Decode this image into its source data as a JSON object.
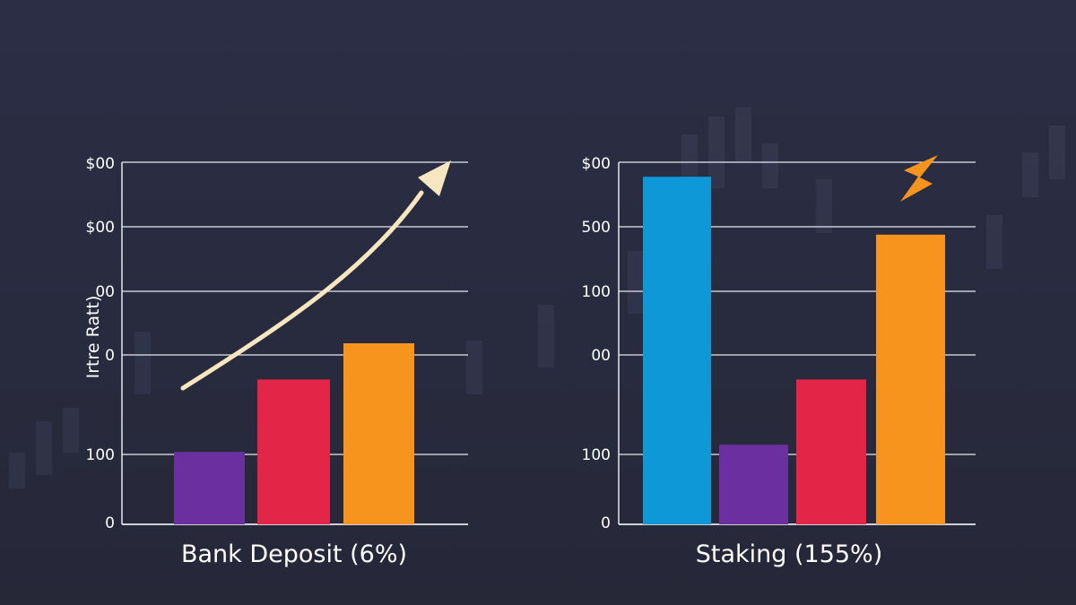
{
  "colors": {
    "background": "#2a2d42",
    "gridline": "#e8e8ee",
    "text": "#ffffff",
    "arrow": "#f6e7c1",
    "blue": "#0f98d8",
    "purple": "#6b2fa0",
    "red": "#e32548",
    "orange": "#f7941d"
  },
  "icons": {
    "left_chart_arrow": "growth-arrow-icon",
    "right_chart_lightning": "lightning-bolt-icon"
  },
  "chart_data": [
    {
      "type": "bar",
      "title": "Bank Deposit (6%)",
      "ylabel": "Irtre Ratt)",
      "tick_labels": [
        "0",
        "100",
        "0",
        "00",
        "$00",
        "$00"
      ],
      "ylim": [
        0,
        5
      ],
      "categories": [
        "",
        "",
        ""
      ],
      "values": [
        1.0,
        2.0,
        2.5
      ],
      "bar_colors": [
        "#6b2fa0",
        "#e32548",
        "#f7941d"
      ],
      "grid": true,
      "annotation": "upward-curved-arrow"
    },
    {
      "type": "bar",
      "title": "Staking (155%)",
      "ylabel": "",
      "tick_labels": [
        "0",
        "100",
        "00",
        "100",
        "500",
        "$00"
      ],
      "ylim": [
        0,
        5
      ],
      "categories": [
        "",
        "",
        "",
        ""
      ],
      "values": [
        4.8,
        1.1,
        2.0,
        4.0
      ],
      "bar_colors": [
        "#0f98d8",
        "#6b2fa0",
        "#e32548",
        "#f7941d"
      ],
      "grid": true,
      "annotation": "lightning-bolt"
    }
  ]
}
